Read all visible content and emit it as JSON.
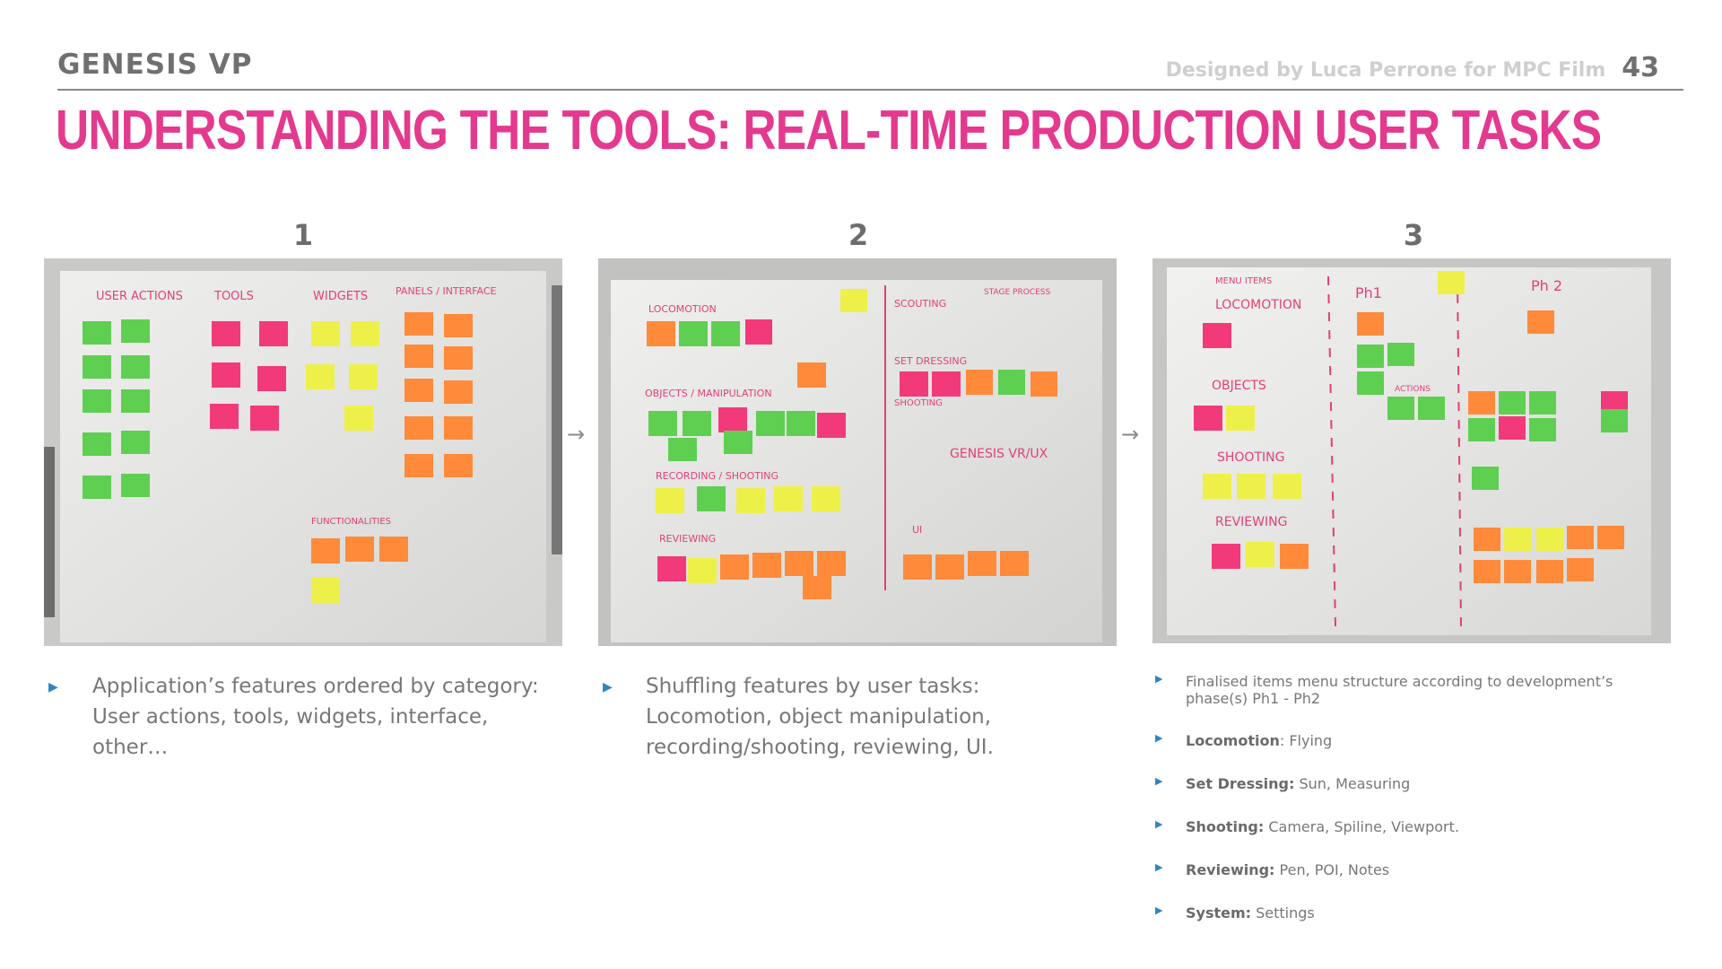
{
  "header": {
    "brand": "GENESIS VP",
    "credit": "Designed by Luca Perrone for MPC Film",
    "page_number": "43",
    "title": "UNDERSTANDING THE TOOLS: REAL-TIME PRODUCTION USER TASKS"
  },
  "steps": [
    {
      "number": "1",
      "board_labels": [
        "USER ACTIONS",
        "TOOLS",
        "WIDGETS",
        "PANELS / INTERFACE",
        "FUNCTIONALITIES"
      ],
      "description": "Application’s features ordered by category: User actions, tools, widgets, interface, other…"
    },
    {
      "number": "2",
      "board_labels": [
        "LOCOMOTION",
        "OBJECTS / MANIPULATION",
        "RECORDING / SHOOTING",
        "REVIEWING",
        "SCOUTING",
        "SET DRESSING",
        "SHOOTING",
        "GENESIS VR/UX",
        "UI",
        "STAGE PROCESS"
      ],
      "description": "Shuffling features by user tasks: Locomotion, object manipulation, recording/shooting, reviewing, UI."
    },
    {
      "number": "3",
      "board_labels": [
        "MENU ITEMS",
        "LOCOMOTION",
        "OBJECTS",
        "SHOOTING",
        "REVIEWING",
        "Ph1",
        "Ph 2",
        "ACTIONS"
      ]
    }
  ],
  "step3_items": [
    {
      "text": "Finalised items menu structure according to development’s phase(s) Ph1 - Ph2"
    },
    {
      "label": "Locomotion",
      "text": ": Flying"
    },
    {
      "label": "Set Dressing:",
      "text": " Sun, Measuring"
    },
    {
      "label": "Shooting:",
      "text": " Camera, Spiline, Viewport."
    },
    {
      "label": "Reviewing:",
      "text": " Pen, POI, Notes"
    },
    {
      "label": "System:",
      "text": " Settings"
    }
  ],
  "colors": {
    "title": "#e33a8f",
    "bullet": "#2e86c1",
    "note_green": "#5fcf52",
    "note_orange": "#ff8a3a",
    "note_pink": "#f23a7a",
    "note_yellow": "#eef04a"
  },
  "icons": {
    "bullet": "triangle-right",
    "flow_arrow": "arrow-right"
  }
}
